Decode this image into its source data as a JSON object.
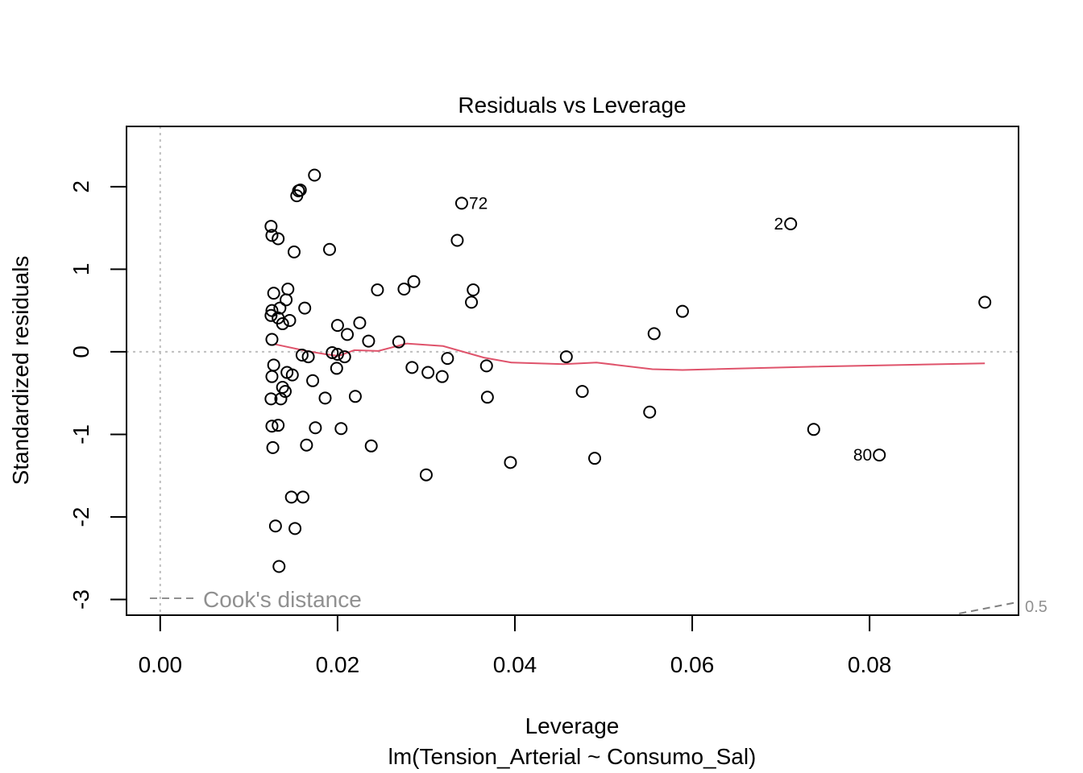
{
  "chart_data": {
    "type": "scatter",
    "title": "Residuals vs Leverage",
    "xlabel": "Leverage",
    "subtitle": "lm(Tension_Arterial ~ Consumo_Sal)",
    "ylabel": "Standardized residuals",
    "xlim": [
      -0.0038,
      0.0968
    ],
    "ylim": [
      -3.19,
      2.73
    ],
    "xticks": [
      "0.00",
      "0.02",
      "0.04",
      "0.06",
      "0.08"
    ],
    "xtick_values": [
      0,
      0.02,
      0.04,
      0.06,
      0.08
    ],
    "yticks": [
      "-3",
      "-2",
      "-1",
      "0",
      "1",
      "2"
    ],
    "ytick_values": [
      -3,
      -2,
      -1,
      0,
      1,
      2
    ],
    "grid": false,
    "reference_lines": {
      "h": 0,
      "v": 0,
      "color": "#bebebe"
    },
    "points": [
      [
        0.0174,
        2.14
      ],
      [
        0.0158,
        1.96
      ],
      [
        0.0156,
        1.95
      ],
      [
        0.0154,
        1.89
      ],
      [
        0.034,
        1.8
      ],
      [
        0.0711,
        1.55
      ],
      [
        0.0125,
        1.52
      ],
      [
        0.0126,
        1.41
      ],
      [
        0.0133,
        1.37
      ],
      [
        0.0335,
        1.35
      ],
      [
        0.0151,
        1.21
      ],
      [
        0.0191,
        1.24
      ],
      [
        0.0286,
        0.85
      ],
      [
        0.0245,
        0.75
      ],
      [
        0.0275,
        0.76
      ],
      [
        0.0353,
        0.75
      ],
      [
        0.0144,
        0.76
      ],
      [
        0.0128,
        0.71
      ],
      [
        0.0142,
        0.63
      ],
      [
        0.0351,
        0.6
      ],
      [
        0.093,
        0.6
      ],
      [
        0.0163,
        0.53
      ],
      [
        0.0135,
        0.53
      ],
      [
        0.0126,
        0.5
      ],
      [
        0.0589,
        0.49
      ],
      [
        0.0125,
        0.44
      ],
      [
        0.0133,
        0.41
      ],
      [
        0.0146,
        0.38
      ],
      [
        0.0138,
        0.34
      ],
      [
        0.0225,
        0.35
      ],
      [
        0.02,
        0.32
      ],
      [
        0.0211,
        0.21
      ],
      [
        0.0557,
        0.22
      ],
      [
        0.0126,
        0.15
      ],
      [
        0.0235,
        0.13
      ],
      [
        0.0269,
        0.12
      ],
      [
        0.0194,
        -0.01
      ],
      [
        0.016,
        -0.04
      ],
      [
        0.0167,
        -0.06
      ],
      [
        0.02,
        -0.03
      ],
      [
        0.0208,
        -0.06
      ],
      [
        0.0458,
        -0.06
      ],
      [
        0.0324,
        -0.08
      ],
      [
        0.0128,
        -0.16
      ],
      [
        0.0368,
        -0.17
      ],
      [
        0.0284,
        -0.19
      ],
      [
        0.0199,
        -0.2
      ],
      [
        0.0302,
        -0.25
      ],
      [
        0.0143,
        -0.25
      ],
      [
        0.0149,
        -0.28
      ],
      [
        0.0318,
        -0.3
      ],
      [
        0.0126,
        -0.3
      ],
      [
        0.0172,
        -0.35
      ],
      [
        0.0138,
        -0.43
      ],
      [
        0.0141,
        -0.48
      ],
      [
        0.0476,
        -0.48
      ],
      [
        0.0125,
        -0.57
      ],
      [
        0.0136,
        -0.57
      ],
      [
        0.0186,
        -0.56
      ],
      [
        0.022,
        -0.54
      ],
      [
        0.0369,
        -0.55
      ],
      [
        0.0552,
        -0.73
      ],
      [
        0.0126,
        -0.9
      ],
      [
        0.0133,
        -0.89
      ],
      [
        0.0175,
        -0.92
      ],
      [
        0.0204,
        -0.93
      ],
      [
        0.0737,
        -0.94
      ],
      [
        0.0127,
        -1.16
      ],
      [
        0.0165,
        -1.13
      ],
      [
        0.0238,
        -1.14
      ],
      [
        0.0811,
        -1.25
      ],
      [
        0.049,
        -1.29
      ],
      [
        0.0395,
        -1.34
      ],
      [
        0.03,
        -1.49
      ],
      [
        0.0148,
        -1.76
      ],
      [
        0.0161,
        -1.76
      ],
      [
        0.013,
        -2.11
      ],
      [
        0.0152,
        -2.14
      ],
      [
        0.0134,
        -2.6
      ]
    ],
    "point_labels": [
      {
        "text": "72",
        "x": 0.034,
        "y": 1.8,
        "side": "right"
      },
      {
        "text": "2",
        "x": 0.0711,
        "y": 1.55,
        "side": "left"
      },
      {
        "text": "80",
        "x": 0.0811,
        "y": -1.25,
        "side": "left"
      }
    ],
    "smooth_line": {
      "color": "#DF536B",
      "x": [
        0.013,
        0.0165,
        0.0187,
        0.0201,
        0.0219,
        0.0246,
        0.0278,
        0.0319,
        0.0365,
        0.0396,
        0.0455,
        0.0492,
        0.0555,
        0.0589,
        0.0737,
        0.093
      ],
      "y": [
        0.09,
        0.01,
        -0.03,
        -0.05,
        0.02,
        0.01,
        0.1,
        0.07,
        -0.07,
        -0.13,
        -0.15,
        -0.13,
        -0.21,
        -0.22,
        -0.18,
        -0.14
      ]
    },
    "cooks_distance": {
      "legend": "Cook's distance",
      "legend_position": "bottom-left",
      "contour_label": "0.5",
      "color": "#808080",
      "line_x": [
        0.0901,
        0.0968
      ],
      "line_y": [
        -3.17,
        -3.03
      ]
    }
  }
}
